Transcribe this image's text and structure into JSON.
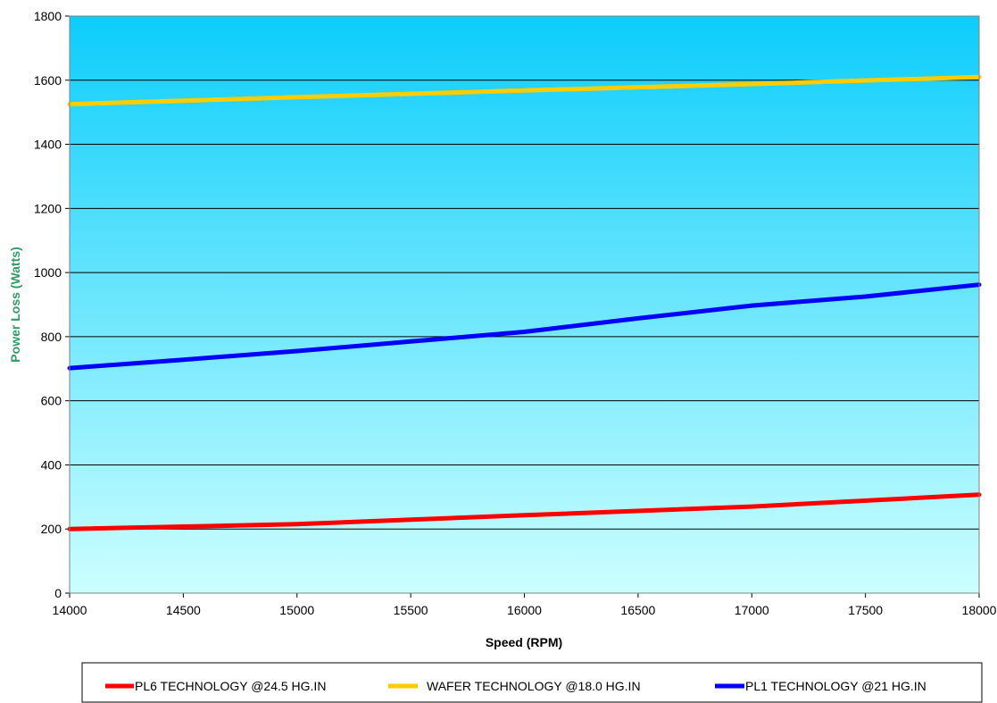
{
  "chart_data": {
    "type": "line",
    "title": "",
    "xlabel": "Speed  (RPM)",
    "ylabel": "Power Loss (Watts)",
    "xlim": [
      14000,
      18000
    ],
    "ylim": [
      0,
      1800
    ],
    "x_ticks": [
      "14000",
      "14500",
      "15000",
      "15500",
      "16000",
      "16500",
      "17000",
      "17500",
      "18000"
    ],
    "y_ticks": [
      "0",
      "200",
      "400",
      "600",
      "800",
      "1000",
      "1200",
      "1400",
      "1600",
      "1800"
    ],
    "grid": "horizontal",
    "legend_position": "bottom",
    "background": {
      "gradient_top": "#0ccdfb",
      "gradient_bottom": "#ccffff"
    },
    "ylabel_color": "#339966",
    "series": [
      {
        "name": "PL6 TECHNOLOGY @24.5 HG.IN",
        "color": "#ff0000",
        "x": [
          14000,
          15000,
          16000,
          17000,
          18000
        ],
        "y": [
          200,
          215,
          243,
          270,
          307
        ]
      },
      {
        "name": "WAFER TECHNOLOGY @18.0 HG.IN",
        "color": "#ffcc00",
        "x": [
          14000,
          15000,
          16000,
          17000,
          18000
        ],
        "y": [
          1525,
          1547,
          1568,
          1588,
          1610
        ]
      },
      {
        "name": "PL1 TECHNOLOGY @21 HG.IN",
        "color": "#0000ff",
        "x": [
          14000,
          14500,
          15000,
          15500,
          16000,
          16500,
          17000,
          17500,
          18000
        ],
        "y": [
          702,
          728,
          755,
          785,
          815,
          857,
          897,
          925,
          962
        ]
      }
    ]
  }
}
